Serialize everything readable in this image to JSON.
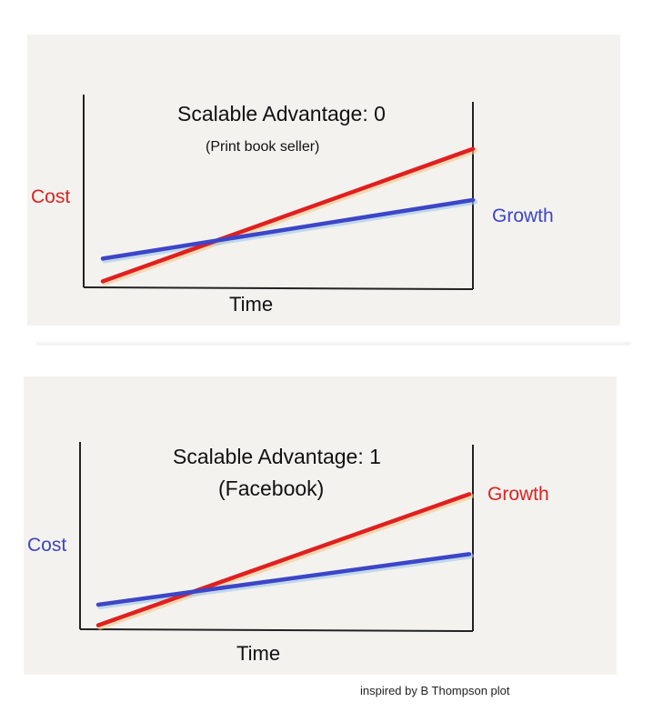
{
  "chart_data": [
    {
      "type": "line",
      "title": "Scalable Advantage: 0",
      "subtitle": "(Print book seller)",
      "xlabel": "Time",
      "left_label": "Cost",
      "right_label": "Growth",
      "x": [
        0,
        1
      ],
      "xlim": [
        0,
        1
      ],
      "ylim": [
        0,
        1
      ],
      "series": [
        {
          "name": "Cost",
          "color": "#e02020",
          "x": [
            0,
            1
          ],
          "y": [
            0.08,
            0.78
          ]
        },
        {
          "name": "Growth",
          "color": "#3d45c8",
          "x": [
            0,
            1
          ],
          "y": [
            0.2,
            0.51
          ]
        }
      ],
      "label_colors": {
        "left": "#e02020",
        "right": "#3d45c8"
      }
    },
    {
      "type": "line",
      "title": "Scalable Advantage: 1",
      "subtitle": "(Facebook)",
      "xlabel": "Time",
      "left_label": "Cost",
      "right_label": "Growth",
      "x": [
        0,
        1
      ],
      "xlim": [
        0,
        1
      ],
      "ylim": [
        0,
        1
      ],
      "series": [
        {
          "name": "Growth",
          "color": "#e02020",
          "x": [
            0,
            1
          ],
          "y": [
            0.06,
            0.76
          ]
        },
        {
          "name": "Cost",
          "color": "#3d45c8",
          "x": [
            0,
            1
          ],
          "y": [
            0.17,
            0.44
          ]
        }
      ],
      "label_colors": {
        "left": "#3d45c8",
        "right": "#e02020"
      }
    }
  ],
  "credit": "inspired by B Thompson plot"
}
